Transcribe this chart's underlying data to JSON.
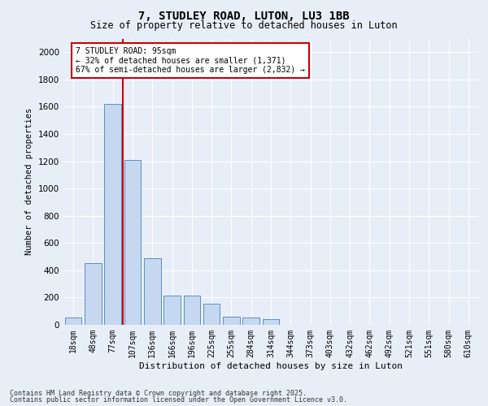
{
  "title1": "7, STUDLEY ROAD, LUTON, LU3 1BB",
  "title2": "Size of property relative to detached houses in Luton",
  "xlabel": "Distribution of detached houses by size in Luton",
  "ylabel": "Number of detached properties",
  "categories": [
    "18sqm",
    "48sqm",
    "77sqm",
    "107sqm",
    "136sqm",
    "166sqm",
    "196sqm",
    "225sqm",
    "255sqm",
    "284sqm",
    "314sqm",
    "344sqm",
    "373sqm",
    "403sqm",
    "432sqm",
    "462sqm",
    "492sqm",
    "521sqm",
    "551sqm",
    "580sqm",
    "610sqm"
  ],
  "values": [
    55,
    450,
    1620,
    1210,
    490,
    215,
    215,
    155,
    60,
    55,
    40,
    0,
    0,
    0,
    0,
    0,
    0,
    0,
    0,
    0,
    0
  ],
  "bar_color": "#c5d8ef",
  "bar_edge_color": "#5a8fc0",
  "vline_color": "#cc0000",
  "annotation_text": "7 STUDLEY ROAD: 95sqm\n← 32% of detached houses are smaller (1,371)\n67% of semi-detached houses are larger (2,832) →",
  "annotation_box_color": "#ffffff",
  "annotation_box_edge": "#cc0000",
  "ylim": [
    0,
    2100
  ],
  "yticks": [
    0,
    200,
    400,
    600,
    800,
    1000,
    1200,
    1400,
    1600,
    1800,
    2000
  ],
  "background_color": "#e8eef8",
  "grid_color": "#ffffff",
  "footer1": "Contains HM Land Registry data © Crown copyright and database right 2025.",
  "footer2": "Contains public sector information licensed under the Open Government Licence v3.0."
}
